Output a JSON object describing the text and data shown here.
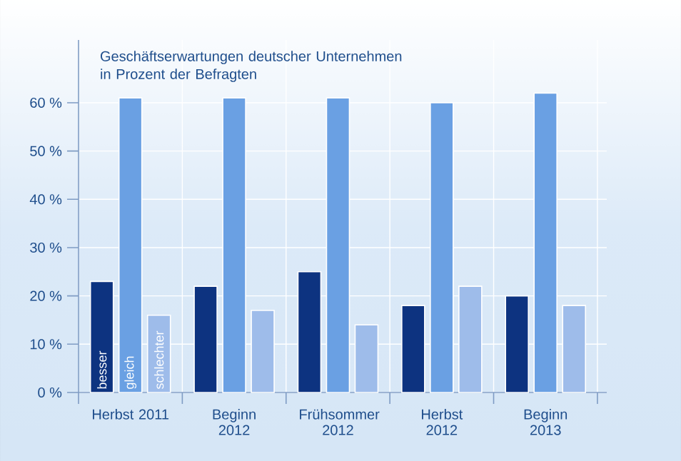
{
  "chart_data": {
    "type": "bar",
    "title": "Geschäftserwartungen deutscher Unternehmen in Prozent der Befragten",
    "categories": [
      "Herbst 2011",
      "Beginn 2012",
      "Frühsommer 2012",
      "Herbst 2012",
      "Beginn 2013"
    ],
    "series": [
      {
        "name": "besser",
        "color": "#0d3380",
        "values": [
          23,
          22,
          25,
          18,
          20
        ]
      },
      {
        "name": "gleich",
        "color": "#6aa0e3",
        "values": [
          61,
          61,
          61,
          60,
          62
        ]
      },
      {
        "name": "schlechter",
        "color": "#9ebcea",
        "values": [
          16,
          17,
          14,
          22,
          18
        ]
      }
    ],
    "ylim": [
      0,
      73
    ],
    "yticks": [
      {
        "value": 0,
        "label": "0 %"
      },
      {
        "value": 10,
        "label": "10 %"
      },
      {
        "value": 20,
        "label": "20 %"
      },
      {
        "value": 30,
        "label": "30 %"
      },
      {
        "value": 40,
        "label": "40 %"
      },
      {
        "value": 50,
        "label": "50 %"
      },
      {
        "value": 60,
        "label": "60 %"
      }
    ],
    "grid": true
  }
}
